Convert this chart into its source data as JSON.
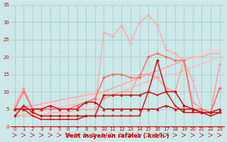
{
  "xlabel": "Vent moyen/en rafales ( km/h )",
  "xlim": [
    -0.5,
    23.5
  ],
  "ylim": [
    0,
    35
  ],
  "yticks": [
    0,
    5,
    10,
    15,
    20,
    25,
    30,
    35
  ],
  "xticks": [
    0,
    1,
    2,
    3,
    4,
    5,
    6,
    7,
    8,
    9,
    10,
    11,
    12,
    13,
    14,
    15,
    16,
    17,
    18,
    19,
    20,
    21,
    22,
    23
  ],
  "bg_color": "#cce8e8",
  "grid_color": "#aacccc",
  "series": [
    {
      "x": [
        0,
        1,
        2,
        3,
        4,
        5,
        6,
        7,
        8,
        9,
        10,
        11,
        12,
        13,
        14,
        15,
        16,
        17,
        18,
        19,
        20,
        21,
        22,
        23
      ],
      "y": [
        3,
        3.5,
        4,
        4.5,
        5,
        5.5,
        6,
        6.5,
        7,
        7.5,
        8,
        9,
        10,
        11,
        12,
        13,
        14,
        15,
        15,
        16,
        17,
        18,
        19,
        20
      ],
      "color": "#ffbbbb",
      "lw": 1.2,
      "marker": null,
      "ms": 0
    },
    {
      "x": [
        0,
        1,
        2,
        3,
        4,
        5,
        6,
        7,
        8,
        9,
        10,
        11,
        12,
        13,
        14,
        15,
        16,
        17,
        18,
        19,
        20,
        21,
        22,
        23
      ],
      "y": [
        4,
        4.5,
        5,
        5.5,
        6,
        6.5,
        7,
        7.5,
        8,
        9,
        10,
        11,
        12,
        13,
        14,
        15,
        16,
        17,
        18,
        19,
        20,
        21,
        22,
        22
      ],
      "color": "#ffcccc",
      "lw": 1.2,
      "marker": null,
      "ms": 0
    },
    {
      "x": [
        0,
        1,
        2,
        3,
        4,
        5,
        6,
        7,
        8,
        9,
        10,
        11,
        12,
        13,
        14,
        15,
        16,
        17,
        18,
        19,
        20,
        21,
        22,
        23
      ],
      "y": [
        5,
        5.5,
        6,
        6.5,
        7,
        7.5,
        8,
        8.5,
        9,
        9.5,
        10,
        11,
        12,
        13,
        14,
        15,
        16,
        17,
        18,
        19,
        20,
        20,
        21,
        21
      ],
      "color": "#ffaaaa",
      "lw": 1.2,
      "marker": null,
      "ms": 0
    },
    {
      "x": [
        0,
        1,
        2,
        3,
        4,
        5,
        6,
        7,
        8,
        9,
        10,
        11,
        12,
        13,
        14,
        15,
        16,
        17,
        18,
        19,
        20,
        21,
        22,
        23
      ],
      "y": [
        6,
        11,
        5,
        5,
        5,
        5,
        5,
        5,
        5,
        5,
        8,
        9,
        10,
        10,
        15,
        15,
        14,
        11,
        10,
        19,
        7,
        5,
        4,
        18
      ],
      "color": "#ff9999",
      "lw": 1.0,
      "marker": "D",
      "ms": 2.0
    },
    {
      "x": [
        0,
        1,
        2,
        3,
        4,
        5,
        6,
        7,
        8,
        9,
        10,
        11,
        12,
        13,
        14,
        15,
        16,
        17,
        18,
        19,
        20,
        21,
        22,
        23
      ],
      "y": [
        3,
        3,
        3,
        3,
        4,
        4,
        4,
        5,
        5,
        5,
        27,
        26,
        29,
        24,
        30,
        32,
        29,
        22,
        21,
        19,
        13,
        5,
        4,
        11
      ],
      "color": "#ffaaaa",
      "lw": 1.0,
      "marker": "D",
      "ms": 2.0
    },
    {
      "x": [
        0,
        1,
        2,
        3,
        4,
        5,
        6,
        7,
        8,
        9,
        10,
        11,
        12,
        13,
        14,
        15,
        16,
        17,
        18,
        19,
        20,
        21,
        22,
        23
      ],
      "y": [
        5,
        10,
        5,
        5,
        5,
        5,
        5,
        6,
        7,
        8,
        14,
        15,
        15,
        14,
        14,
        20,
        21,
        20,
        19,
        19,
        5,
        5,
        4,
        11
      ],
      "color": "#ff6666",
      "lw": 1.0,
      "marker": "D",
      "ms": 2.0
    },
    {
      "x": [
        0,
        1,
        2,
        3,
        4,
        5,
        6,
        7,
        8,
        9,
        10,
        11,
        12,
        13,
        14,
        15,
        16,
        17,
        18,
        19,
        20,
        21,
        22,
        23
      ],
      "y": [
        3,
        6,
        4,
        3,
        3,
        3,
        3,
        3,
        3,
        3,
        9,
        9,
        9,
        9,
        9,
        10,
        19,
        10,
        10,
        6,
        5,
        4,
        4,
        4
      ],
      "color": "#cc0000",
      "lw": 1.0,
      "marker": "D",
      "ms": 2.0
    },
    {
      "x": [
        0,
        1,
        2,
        3,
        4,
        5,
        6,
        7,
        8,
        9,
        10,
        11,
        12,
        13,
        14,
        15,
        16,
        17,
        18,
        19,
        20,
        21,
        22,
        23
      ],
      "y": [
        5,
        5,
        3,
        2,
        2,
        2,
        2,
        2,
        3,
        3,
        3,
        3,
        3,
        3,
        3,
        10,
        9,
        10,
        6,
        4,
        4,
        4,
        3,
        4
      ],
      "color": "#dd0000",
      "lw": 1.0,
      "marker": "s",
      "ms": 2.0
    },
    {
      "x": [
        0,
        1,
        2,
        3,
        4,
        5,
        6,
        7,
        8,
        9,
        10,
        11,
        12,
        13,
        14,
        15,
        16,
        17,
        18,
        19,
        20,
        21,
        22,
        23
      ],
      "y": [
        5,
        5,
        5,
        5,
        6,
        5,
        5,
        5,
        7,
        7,
        5,
        5,
        5,
        5,
        5,
        5,
        5,
        6,
        5,
        5,
        5,
        4,
        4,
        5
      ],
      "color": "#cc0000",
      "lw": 1.0,
      "marker": "^",
      "ms": 2.5
    }
  ]
}
